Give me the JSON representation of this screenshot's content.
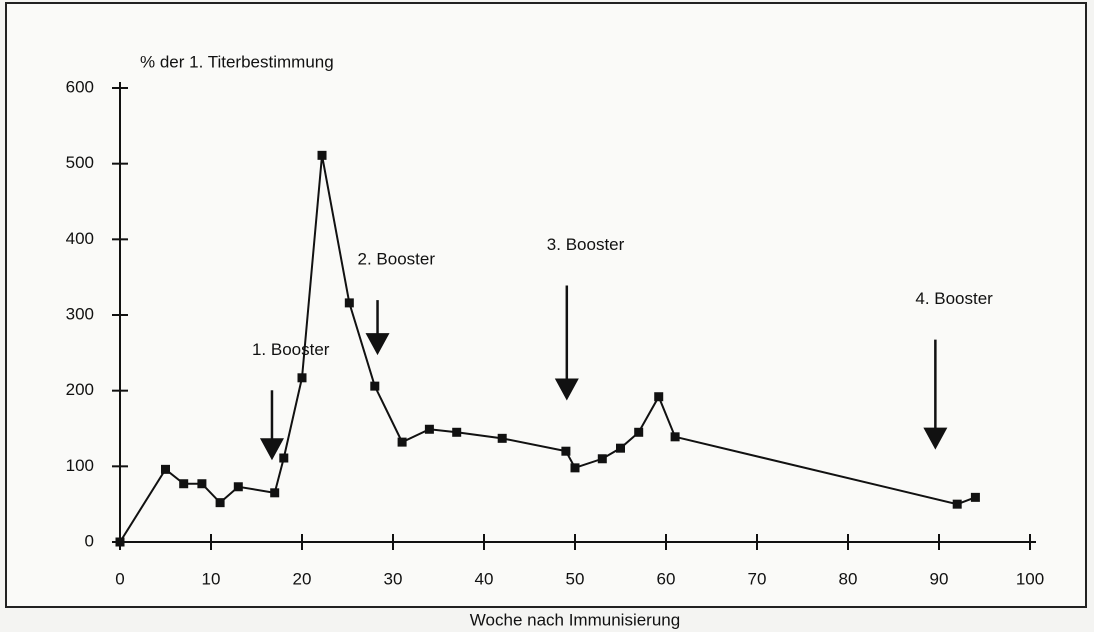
{
  "chart_data": {
    "type": "line",
    "ylabel": "% der 1. Titerbestimmung",
    "xlabel": "Woche nach Immunisierung",
    "xlim": [
      0,
      100
    ],
    "xticks": [
      0,
      10,
      20,
      30,
      40,
      50,
      60,
      70,
      80,
      90,
      100
    ],
    "ylim": [
      0,
      600
    ],
    "yticks": [
      0,
      100,
      200,
      300,
      400,
      500,
      600
    ],
    "series": [
      {
        "color": "#111111",
        "x": [
          0,
          5,
          7,
          9,
          11,
          13,
          17,
          18,
          20,
          22.2,
          25.2,
          28,
          31,
          34,
          37,
          42,
          49,
          50,
          53,
          55,
          57,
          59.2,
          61,
          92,
          94
        ],
        "values": [
          0,
          96,
          77,
          77,
          52,
          73,
          65,
          111,
          217,
          511,
          316,
          206,
          132,
          149,
          145,
          137,
          120,
          98,
          110,
          124,
          145,
          192,
          139,
          50,
          59
        ]
      }
    ],
    "annotations": [
      {
        "text": "1. Booster",
        "x": 16.7,
        "y": 108
      },
      {
        "text": "2. Booster",
        "x": 28.3,
        "y": 247
      },
      {
        "text": "3. Booster",
        "x": 49.1,
        "y": 187
      },
      {
        "text": "4. Booster",
        "x": 89.6,
        "y": 122
      }
    ]
  }
}
